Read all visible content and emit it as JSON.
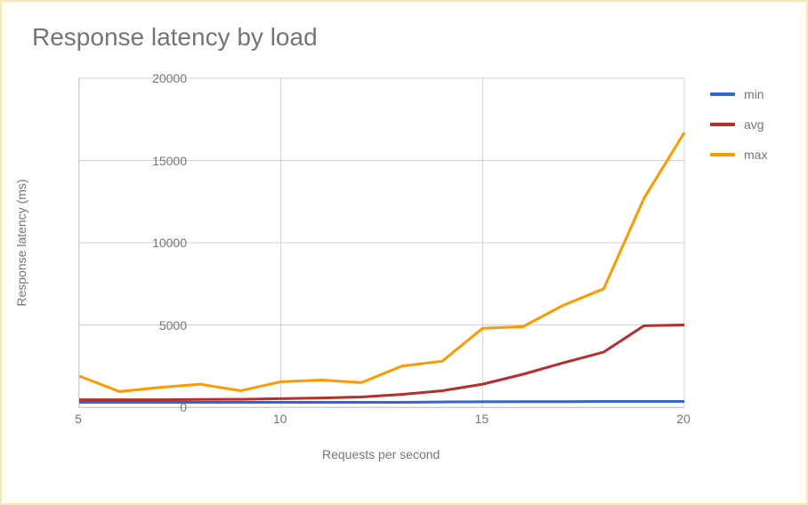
{
  "chart": {
    "type": "line",
    "title": "Response latency by load",
    "title_fontsize": 28,
    "title_color": "#757575",
    "background_color": "#ffffff",
    "outer_background": "#fffef4",
    "outer_border_color": "#f4e9b9",
    "grid_color": "#d0d0d0",
    "label_color": "#757575",
    "label_fontsize": 14,
    "line_width": 3,
    "x": {
      "label": "Requests per second",
      "min": 5,
      "max": 20,
      "ticks": [
        5,
        10,
        15,
        20
      ]
    },
    "y": {
      "label": "Response latency (ms)",
      "min": 0,
      "max": 20000,
      "ticks": [
        0,
        5000,
        10000,
        15000,
        20000
      ]
    },
    "series": [
      {
        "name": "min",
        "color": "#3366cc",
        "x": [
          5,
          6,
          7,
          8,
          9,
          10,
          11,
          12,
          13,
          14,
          15,
          16,
          17,
          18,
          19,
          20
        ],
        "y": [
          300,
          300,
          300,
          300,
          300,
          300,
          300,
          300,
          300,
          320,
          330,
          340,
          340,
          350,
          350,
          350
        ]
      },
      {
        "name": "avg",
        "color": "#b82e2e",
        "x": [
          5,
          6,
          7,
          8,
          9,
          10,
          11,
          12,
          13,
          14,
          15,
          16,
          17,
          18,
          19,
          20
        ],
        "y": [
          450,
          450,
          450,
          470,
          480,
          520,
          560,
          620,
          780,
          1000,
          1400,
          2000,
          2700,
          3350,
          4950,
          5000
        ]
      },
      {
        "name": "max",
        "color": "#ff9900",
        "x": [
          5,
          6,
          7,
          8,
          9,
          10,
          11,
          12,
          13,
          14,
          15,
          16,
          17,
          18,
          19,
          20
        ],
        "y": [
          1900,
          950,
          1200,
          1400,
          1000,
          1550,
          1650,
          1500,
          2500,
          2800,
          4800,
          4900,
          6200,
          7200,
          12700,
          16700
        ]
      }
    ],
    "legend": [
      {
        "label": "min",
        "color": "#3366cc"
      },
      {
        "label": "avg",
        "color": "#b82e2e"
      },
      {
        "label": "max",
        "color": "#ff9900"
      }
    ]
  }
}
